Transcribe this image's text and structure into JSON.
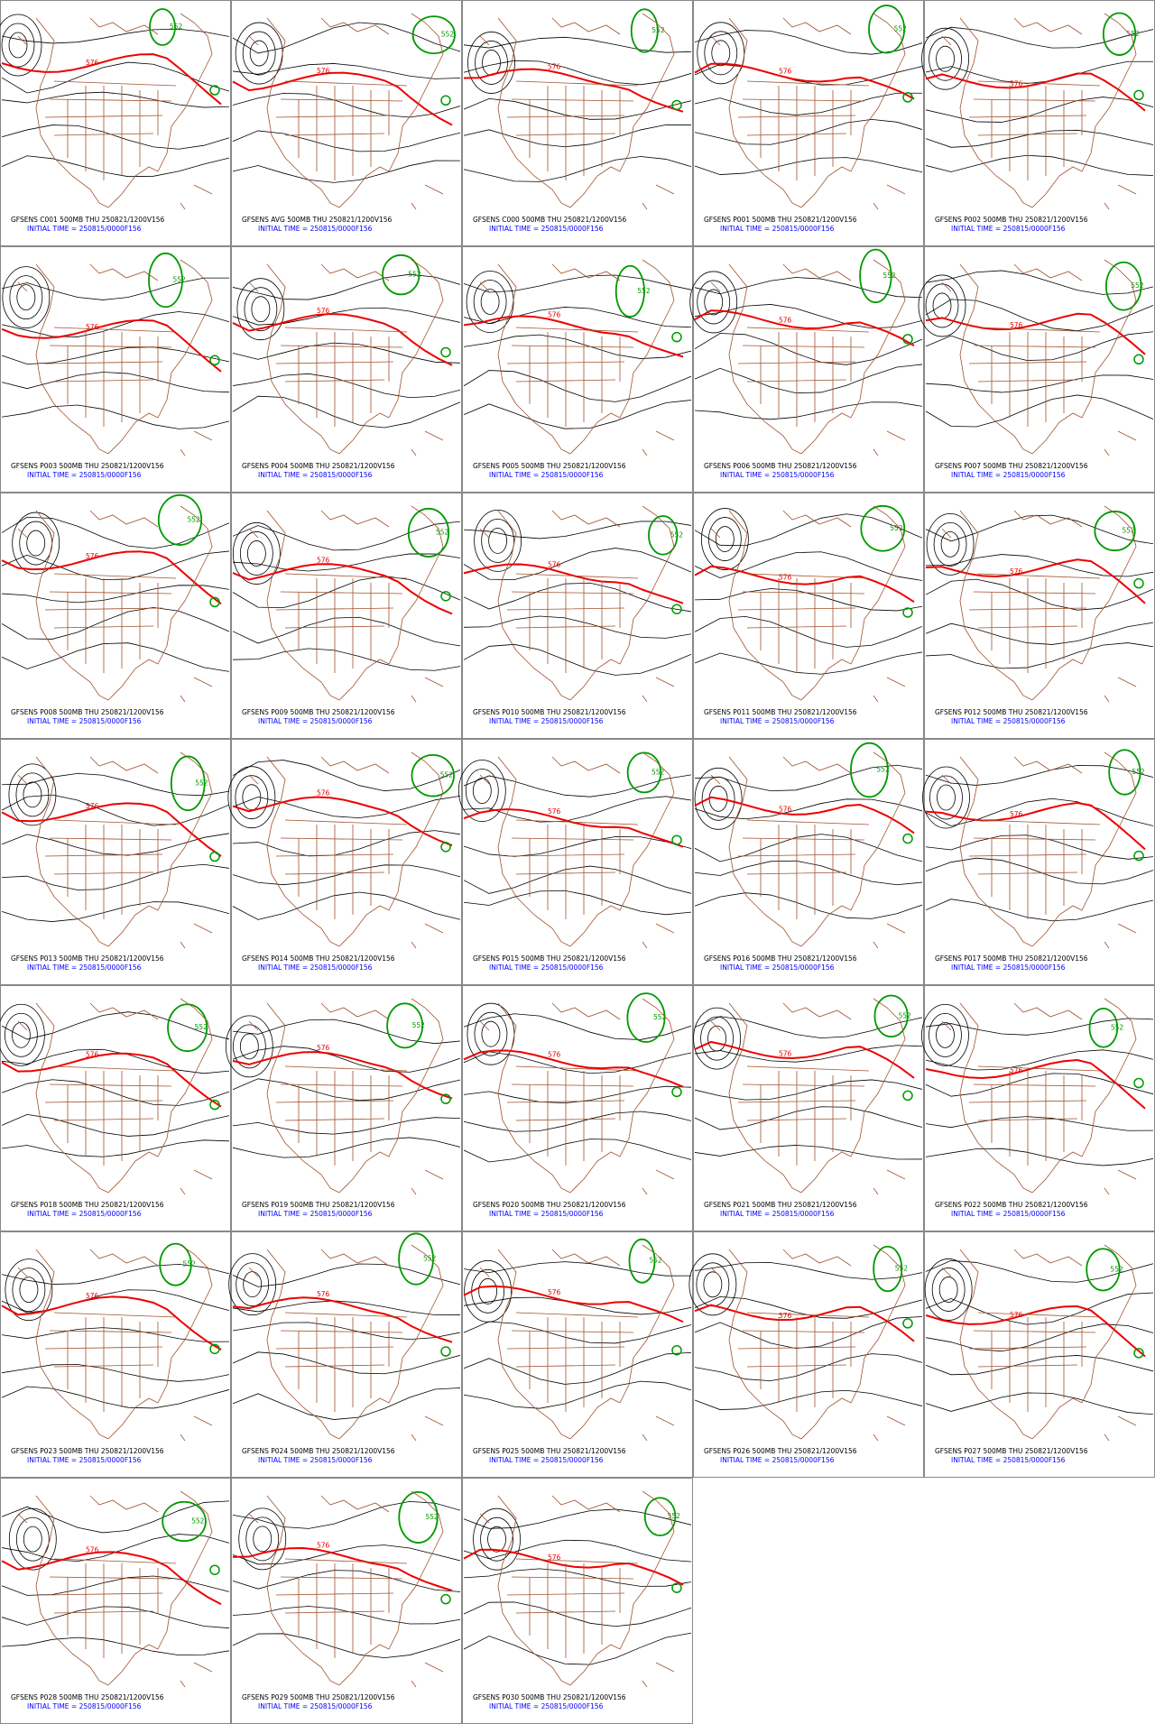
{
  "initial_time": "INITIAL TIME = 250815/0000F156",
  "contour_labels": [
    "552",
    "576"
  ],
  "panels": [
    "GFSENS C001 500MB THU 250821/1200V156",
    "GFSENS AVG 500MB THU 250821/1200V156",
    "GFSENS C000 500MB THU 250821/1200V156",
    "GFSENS P001 500MB THU 250821/1200V156",
    "GFSENS P002 500MB THU 250821/1200V156",
    "GFSENS P003 500MB THU 250821/1200V156",
    "GFSENS P004 500MB THU 250821/1200V156",
    "GFSENS P005 500MB THU 250821/1200V156",
    "GFSENS P006 500MB THU 250821/1200V156",
    "GFSENS P007 500MB THU 250821/1200V156",
    "GFSENS P008 500MB THU 250821/1200V156",
    "GFSENS P009 500MB THU 250821/1200V156",
    "GFSENS P010 500MB THU 250821/1200V156",
    "GFSENS P011 500MB THU 250821/1200V156",
    "GFSENS P012 500MB THU 250821/1200V156",
    "GFSENS P013 500MB THU 250821/1200V156",
    "GFSENS P014 500MB THU 250821/1200V156",
    "GFSENS P015 500MB THU 250821/1200V156",
    "GFSENS P016 500MB THU 250821/1200V156",
    "GFSENS P017 500MB THU 250821/1200V156",
    "GFSENS P018 500MB THU 250821/1200V156",
    "GFSENS P019 500MB THU 250821/1200V156",
    "GFSENS P020 500MB THU 250821/1200V156",
    "GFSENS P021 500MB THU 250821/1200V156",
    "GFSENS P022 500MB THU 250821/1200V156",
    "GFSENS P023 500MB THU 250821/1200V156",
    "GFSENS P024 500MB THU 250821/1200V156",
    "GFSENS P025 500MB THU 250821/1200V156",
    "GFSENS P026 500MB THU 250821/1200V156",
    "GFSENS P027 500MB THU 250821/1200V156",
    "GFSENS P028 500MB THU 250821/1200V156",
    "GFSENS P029 500MB THU 250821/1200V156",
    "GFSENS P030 500MB THU 250821/1200V156"
  ]
}
